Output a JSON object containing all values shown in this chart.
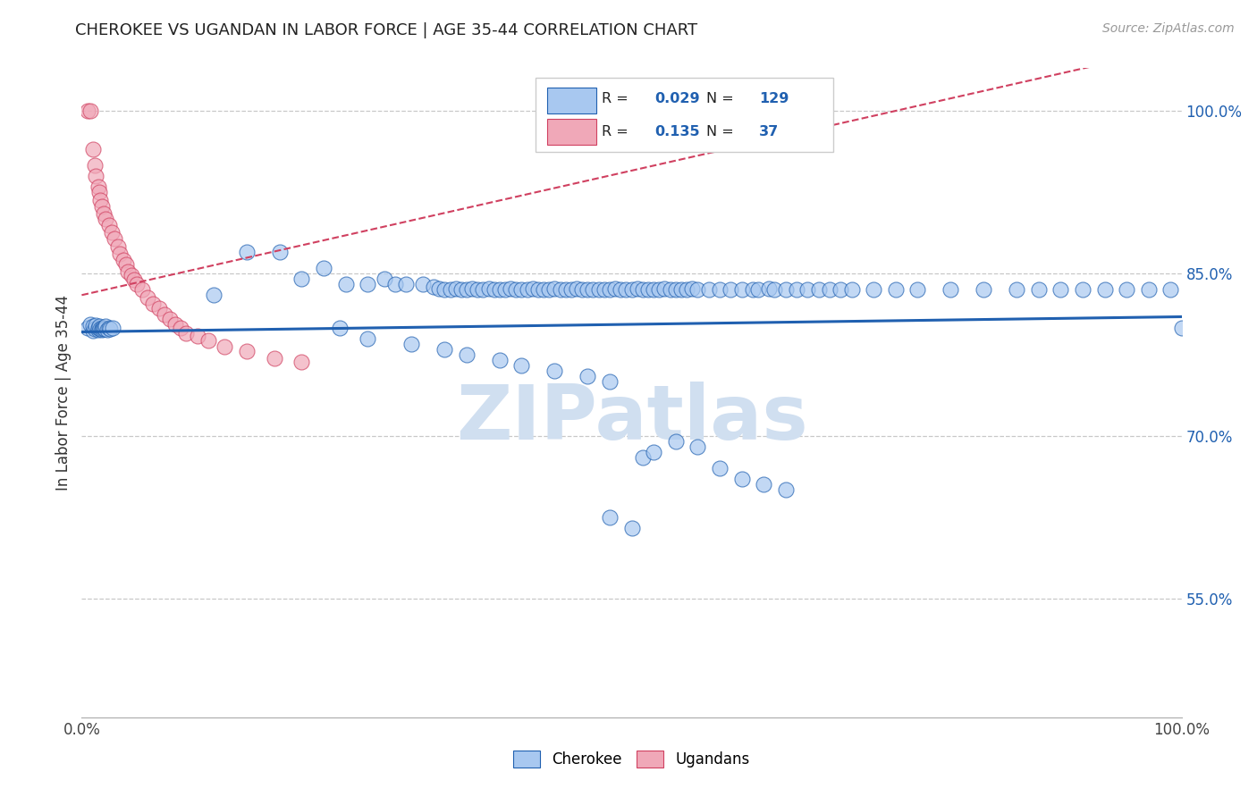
{
  "title": "CHEROKEE VS UGANDAN IN LABOR FORCE | AGE 35-44 CORRELATION CHART",
  "source_text": "Source: ZipAtlas.com",
  "ylabel": "In Labor Force | Age 35-44",
  "xlim": [
    0.0,
    1.0
  ],
  "ylim": [
    0.44,
    1.04
  ],
  "xticks": [
    0.0,
    0.2,
    0.4,
    0.6,
    0.8,
    1.0
  ],
  "xtick_labels": [
    "0.0%",
    "",
    "",
    "",
    "",
    "100.0%"
  ],
  "yticks": [
    0.55,
    0.7,
    0.85,
    1.0
  ],
  "ytick_labels": [
    "55.0%",
    "70.0%",
    "85.0%",
    "100.0%"
  ],
  "cherokee_color": "#a8c8f0",
  "ugandan_color": "#f0a8b8",
  "cherokee_line_color": "#2060b0",
  "ugandan_line_color": "#d04060",
  "watermark": "ZIPatlas",
  "watermark_color": "#d0dff0",
  "background_color": "#ffffff",
  "grid_color": "#c8c8c8",
  "r_cherokee": 0.029,
  "n_cherokee": 129,
  "r_ugandan": 0.135,
  "n_ugandan": 37,
  "legend_label_cherokee": "Cherokee",
  "legend_label_ugandan": "Ugandans",
  "title_fontsize": 13,
  "tick_fontsize": 12,
  "legend_fontsize": 12,
  "cherokee_x": [
    0.005,
    0.008,
    0.01,
    0.01,
    0.012,
    0.013,
    0.015,
    0.015,
    0.016,
    0.017,
    0.018,
    0.018,
    0.019,
    0.02,
    0.021,
    0.022,
    0.023,
    0.025,
    0.026,
    0.028,
    0.12,
    0.15,
    0.18,
    0.2,
    0.22,
    0.24,
    0.26,
    0.275,
    0.285,
    0.295,
    0.31,
    0.32,
    0.325,
    0.33,
    0.335,
    0.34,
    0.345,
    0.35,
    0.355,
    0.36,
    0.365,
    0.37,
    0.375,
    0.38,
    0.385,
    0.39,
    0.395,
    0.4,
    0.405,
    0.41,
    0.415,
    0.42,
    0.425,
    0.43,
    0.435,
    0.44,
    0.445,
    0.45,
    0.455,
    0.46,
    0.465,
    0.47,
    0.475,
    0.48,
    0.485,
    0.49,
    0.495,
    0.5,
    0.505,
    0.51,
    0.515,
    0.52,
    0.525,
    0.53,
    0.535,
    0.54,
    0.545,
    0.55,
    0.555,
    0.56,
    0.57,
    0.58,
    0.59,
    0.6,
    0.61,
    0.615,
    0.625,
    0.63,
    0.64,
    0.65,
    0.66,
    0.67,
    0.68,
    0.69,
    0.7,
    0.72,
    0.74,
    0.76,
    0.79,
    0.82,
    0.85,
    0.87,
    0.89,
    0.91,
    0.93,
    0.95,
    0.97,
    0.99,
    1.0,
    0.235,
    0.26,
    0.3,
    0.33,
    0.35,
    0.38,
    0.4,
    0.43,
    0.46,
    0.48,
    0.48,
    0.5,
    0.51,
    0.52,
    0.54,
    0.56,
    0.58,
    0.6,
    0.62,
    0.64
  ],
  "cherokee_y": [
    0.8,
    0.803,
    0.797,
    0.801,
    0.799,
    0.802,
    0.798,
    0.8,
    0.801,
    0.799,
    0.8,
    0.798,
    0.799,
    0.8,
    0.799,
    0.801,
    0.798,
    0.8,
    0.799,
    0.8,
    0.83,
    0.87,
    0.87,
    0.845,
    0.855,
    0.84,
    0.84,
    0.845,
    0.84,
    0.84,
    0.84,
    0.838,
    0.836,
    0.835,
    0.835,
    0.836,
    0.835,
    0.835,
    0.836,
    0.835,
    0.835,
    0.836,
    0.835,
    0.835,
    0.835,
    0.836,
    0.835,
    0.835,
    0.835,
    0.836,
    0.835,
    0.835,
    0.835,
    0.836,
    0.835,
    0.835,
    0.835,
    0.836,
    0.835,
    0.835,
    0.835,
    0.835,
    0.835,
    0.835,
    0.836,
    0.835,
    0.835,
    0.835,
    0.836,
    0.835,
    0.835,
    0.835,
    0.835,
    0.836,
    0.835,
    0.835,
    0.835,
    0.835,
    0.836,
    0.835,
    0.835,
    0.835,
    0.835,
    0.835,
    0.835,
    0.835,
    0.836,
    0.835,
    0.835,
    0.835,
    0.835,
    0.835,
    0.835,
    0.835,
    0.835,
    0.835,
    0.835,
    0.835,
    0.835,
    0.835,
    0.835,
    0.835,
    0.835,
    0.835,
    0.835,
    0.835,
    0.835,
    0.835,
    0.8,
    0.8,
    0.79,
    0.785,
    0.78,
    0.775,
    0.77,
    0.765,
    0.76,
    0.755,
    0.75,
    0.625,
    0.615,
    0.68,
    0.685,
    0.695,
    0.69,
    0.67,
    0.66,
    0.655,
    0.65
  ],
  "ugandan_x": [
    0.005,
    0.008,
    0.01,
    0.012,
    0.013,
    0.015,
    0.016,
    0.017,
    0.018,
    0.02,
    0.022,
    0.025,
    0.027,
    0.03,
    0.033,
    0.035,
    0.038,
    0.04,
    0.042,
    0.045,
    0.048,
    0.05,
    0.055,
    0.06,
    0.065,
    0.07,
    0.075,
    0.08,
    0.085,
    0.09,
    0.095,
    0.105,
    0.115,
    0.13,
    0.15,
    0.175,
    0.2
  ],
  "ugandan_y": [
    1.0,
    1.0,
    0.965,
    0.95,
    0.94,
    0.93,
    0.925,
    0.918,
    0.912,
    0.905,
    0.9,
    0.895,
    0.888,
    0.882,
    0.875,
    0.868,
    0.862,
    0.858,
    0.852,
    0.848,
    0.844,
    0.84,
    0.835,
    0.828,
    0.822,
    0.818,
    0.812,
    0.808,
    0.803,
    0.8,
    0.795,
    0.792,
    0.788,
    0.782,
    0.778,
    0.772,
    0.768
  ]
}
